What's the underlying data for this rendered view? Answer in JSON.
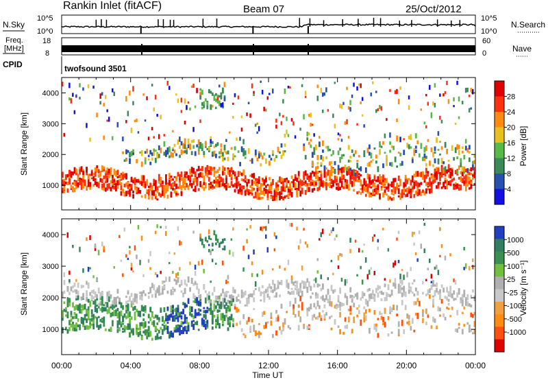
{
  "header": {
    "station": "Rankin Inlet (fitACF)",
    "beam": "Beam 07",
    "date": "25/Oct/2012"
  },
  "strip_labels": {
    "nsky": "N.Sky",
    "nsky_ticks": [
      "10^5",
      "10^0"
    ],
    "nsearch": "N.Search",
    "nsearch_ticks": [
      "10^5",
      "10^0"
    ],
    "freq_line1": "Freq.",
    "freq_line2": "[MHz]",
    "freq_ticks": [
      "18",
      "8"
    ],
    "nave": "Nave",
    "nave_ticks": [
      "60",
      "0"
    ],
    "cpid": "CPID",
    "cpid_value": "twofsound 3501"
  },
  "colors": {
    "power": [
      "#1010e0",
      "#2850b0",
      "#3a8a5a",
      "#58b848",
      "#e8c020",
      "#ff8c10",
      "#ff3010",
      "#e00000"
    ],
    "velocity": [
      "#e00000",
      "#ff5010",
      "#ff8c10",
      "#f0a040",
      "#c8c8c8",
      "#b0b0b0",
      "#70c040",
      "#3a9050",
      "#308060",
      "#2040c0"
    ]
  },
  "chart_data": [
    {
      "type": "heatmap",
      "quantity": "power",
      "ylabel": "Slant Range [km]",
      "xlabel": "",
      "yticks": [
        "1000",
        "2000",
        "3000",
        "4000"
      ],
      "ylim": [
        200,
        4500
      ],
      "xticks": [
        "00:00",
        "04:00",
        "08:00",
        "12:00",
        "16:00",
        "20:00",
        "00:00"
      ],
      "xlim_hours": [
        0,
        24
      ],
      "colorbar_label": "Power [dB]",
      "colorbar_ticks": [
        "4",
        "8",
        "12",
        "16",
        "20",
        "24",
        "28"
      ],
      "bands": [
        {
          "t": [
            0,
            24
          ],
          "center": 1000,
          "width": 700
        },
        {
          "t": [
            3.5,
            13.0
          ],
          "center": 2000,
          "width": 500
        },
        {
          "t": [
            14.0,
            24.0
          ],
          "center": 1900,
          "width": 900
        },
        {
          "t": [
            8.0,
            9.5
          ],
          "center": 3900,
          "width": 600
        }
      ]
    },
    {
      "type": "heatmap",
      "quantity": "velocity",
      "ylabel": "Slant Range [km]",
      "xlabel": "Time UT",
      "yticks": [
        "1000",
        "2000",
        "3000",
        "4000"
      ],
      "ylim": [
        200,
        4500
      ],
      "xticks": [
        "00:00",
        "04:00",
        "08:00",
        "12:00",
        "16:00",
        "20:00",
        "00:00"
      ],
      "xlim_hours": [
        0,
        24
      ],
      "colorbar_label": "Velocity [m s⁻¹]",
      "colorbar_ticks": [
        "1000",
        "500",
        "100",
        "25",
        "-25",
        "-100",
        "-500",
        "-1000"
      ],
      "bands": [
        {
          "t": [
            0,
            10
          ],
          "center": 1300,
          "width": 1000
        },
        {
          "t": [
            10,
            24
          ],
          "center": 1300,
          "width": 1000
        },
        {
          "t": [
            0,
            24
          ],
          "center": 2100,
          "width": 500
        },
        {
          "t": [
            8.0,
            9.5
          ],
          "center": 3900,
          "width": 600
        }
      ]
    }
  ]
}
